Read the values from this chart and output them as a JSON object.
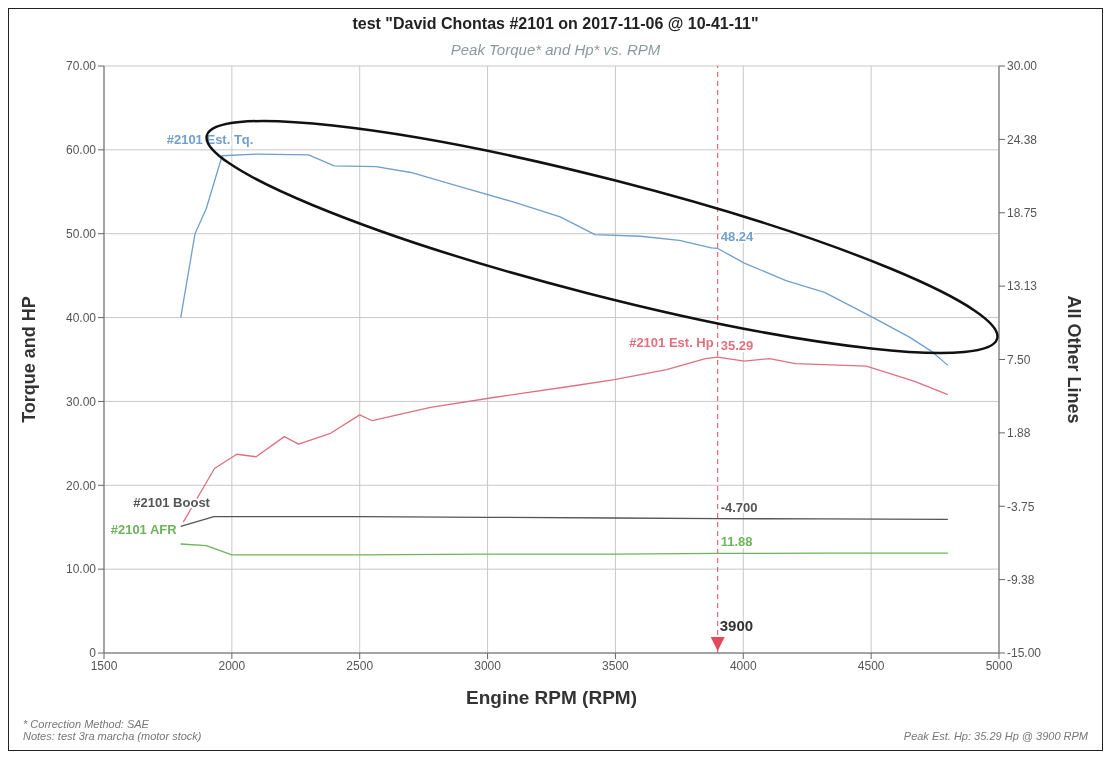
{
  "chart_data": {
    "type": "line",
    "title": "test \"David Chontas #2101 on 2017-11-06 @ 10-41-11\"",
    "subtitle": "Peak Torque* and Hp* vs. RPM",
    "xlabel": "Engine RPM (RPM)",
    "ylabel": "Torque and HP",
    "y2label": "All Other Lines",
    "xlim": [
      1500,
      5000
    ],
    "xticks": [
      1500,
      2000,
      2500,
      3000,
      3500,
      4000,
      4500,
      5000
    ],
    "ylim": [
      0,
      70
    ],
    "yticks": [
      0,
      {
        "value": 10,
        "label": "10.00"
      },
      {
        "value": 20,
        "label": "20.00"
      },
      {
        "value": 30,
        "label": "30.00"
      },
      {
        "value": 40,
        "label": "40.00"
      },
      {
        "value": 50,
        "label": "50.00"
      },
      {
        "value": 60,
        "label": "60.00"
      },
      {
        "value": 70,
        "label": "70.00"
      }
    ],
    "y2lim": [
      -15,
      30
    ],
    "y2ticks": [
      {
        "value": -15,
        "label": "-15.00"
      },
      {
        "value": -9.375,
        "label": "-9.38"
      },
      {
        "value": -3.75,
        "label": "-3.75"
      },
      {
        "value": 1.875,
        "label": "1.88"
      },
      {
        "value": 7.5,
        "label": "7.50"
      },
      {
        "value": 13.125,
        "label": "13.13"
      },
      {
        "value": 18.75,
        "label": "18.75"
      },
      {
        "value": 24.375,
        "label": "24.38"
      },
      {
        "value": 30,
        "label": "30.00"
      }
    ],
    "grid": true,
    "marker": "none",
    "line_style": "solid",
    "series": [
      {
        "name": "#2101 Est. Tq.",
        "color": "#6f9fcc",
        "x": [
          1800,
          1856,
          1900,
          1962,
          2100,
          2300,
          2400,
          2564,
          2700,
          2905,
          3100,
          3284,
          3420,
          3598,
          3750,
          3875,
          3900,
          4004,
          4167,
          4318,
          4508,
          4648,
          4735,
          4800
        ],
        "values": [
          40,
          50,
          53,
          59.3,
          59.5,
          59.4,
          58.1,
          58,
          57.3,
          55.5,
          53.8,
          52,
          49.9,
          49.7,
          49.2,
          48.3,
          48.24,
          46.5,
          44.4,
          43,
          40,
          37.7,
          36,
          34.3
        ],
        "value_labels": [
          null,
          null,
          null,
          null,
          null,
          null,
          null,
          null,
          null,
          null,
          null,
          null,
          null,
          null,
          null,
          null,
          "48.24",
          null,
          null,
          null,
          null,
          null,
          null,
          null
        ]
      },
      {
        "name": "#2101 Est. Hp",
        "color": "#e0707f",
        "x": [
          1810,
          1932,
          2019,
          2095,
          2205,
          2261,
          2386,
          2500,
          2549,
          2777,
          3030,
          3345,
          3496,
          3700,
          3852,
          3900,
          4004,
          4102,
          4205,
          4481,
          4670,
          4800
        ],
        "values": [
          15.6,
          22,
          23.7,
          23.4,
          25.8,
          24.9,
          26.2,
          28.4,
          27.7,
          29.3,
          30.5,
          31.9,
          32.6,
          33.8,
          35.1,
          35.29,
          34.8,
          35.1,
          34.5,
          34.2,
          32.4,
          30.8
        ],
        "value_labels": [
          null,
          null,
          null,
          null,
          null,
          null,
          null,
          null,
          null,
          null,
          null,
          null,
          null,
          null,
          null,
          "35.29",
          null,
          null,
          null,
          null,
          null,
          null
        ]
      },
      {
        "name": "#2101 Boost",
        "color": "#555555",
        "axis": "y2",
        "x": [
          1800,
          1930,
          2500,
          3000,
          3500,
          3900,
          4300,
          4800
        ],
        "values": [
          -5.3,
          -4.55,
          -4.55,
          -4.6,
          -4.65,
          -4.7,
          -4.72,
          -4.75
        ],
        "value_labels": [
          null,
          null,
          null,
          null,
          null,
          "-4.700",
          null,
          null
        ]
      },
      {
        "name": "#2101 AFR",
        "color": "#6cb35a",
        "x": [
          1800,
          1900,
          2000,
          2500,
          3000,
          3500,
          3900,
          4300,
          4800
        ],
        "values": [
          13.0,
          12.8,
          11.7,
          11.7,
          11.8,
          11.8,
          11.88,
          11.9,
          11.9
        ],
        "value_labels": [
          null,
          null,
          null,
          null,
          null,
          null,
          "11.88",
          null,
          null
        ]
      }
    ],
    "ref_lines": [
      {
        "axis": "x",
        "value": 3900,
        "label": "3900",
        "color": "#e04a5a",
        "line_style": "dashed"
      }
    ],
    "annotations": [
      "* Correction Method: SAE",
      "Notes: test 3ra marcha (motor stock)",
      "Peak Est. Hp: 35.29 Hp @ 3900 RPM"
    ]
  }
}
